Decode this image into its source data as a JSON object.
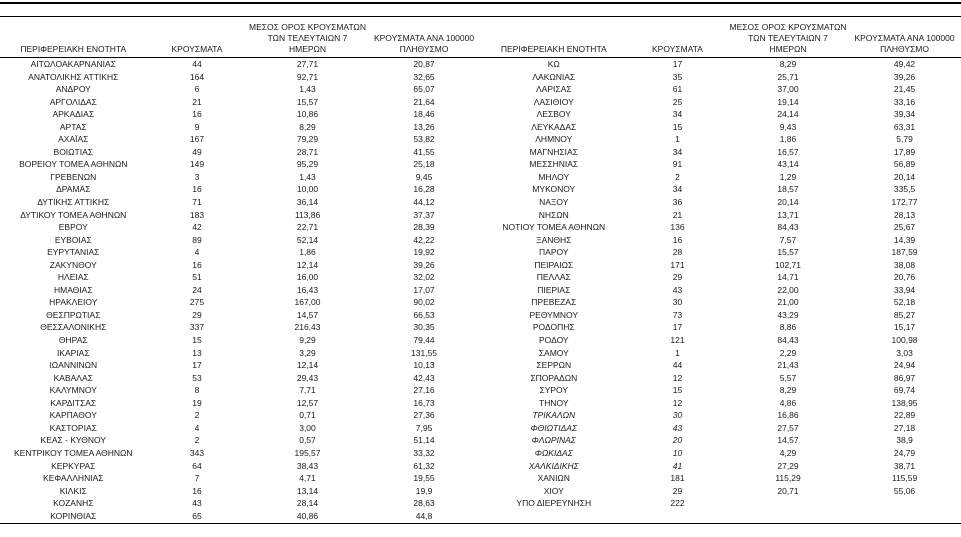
{
  "colors": {
    "background": "#ffffff",
    "text": "#1a1a1a",
    "line": "#000000"
  },
  "headers": {
    "region": "ΠΕΡΙΦΕΡΕΙΑΚΗ ΕΝΟΤΗΤΑ",
    "cases": "ΚΡΟΥΣΜΑΤΑ",
    "avg7_line1": "ΜΕΣΟΣ ΟΡΟΣ ΚΡΟΥΣΜΑΤΩΝ",
    "avg7_line2": "ΤΩΝ ΤΕΛΕΥΤΑΙΩΝ 7",
    "avg7_line3": "ΗΜΕΡΩΝ",
    "per100k_line1": "ΚΡΟΥΣΜΑΤΑ ΑΝΑ 100000",
    "per100k_line2": "ΠΛΗΘΥΣΜΟ"
  },
  "left_rows": [
    {
      "region": "ΑΙΤΩΛΟΑΚΑΡΝΑΝΙΑΣ",
      "cases": "44",
      "avg7": "27,71",
      "per100k": "20,87",
      "italic": false
    },
    {
      "region": "ΑΝΑΤΟΛΙΚΗΣ ΑΤΤΙΚΗΣ",
      "cases": "164",
      "avg7": "92,71",
      "per100k": "32,65",
      "italic": false
    },
    {
      "region": "ΑΝΔΡΟΥ",
      "cases": "6",
      "avg7": "1,43",
      "per100k": "65,07",
      "italic": false
    },
    {
      "region": "ΑΡΓΟΛΙΔΑΣ",
      "cases": "21",
      "avg7": "15,57",
      "per100k": "21,64",
      "italic": false
    },
    {
      "region": "ΑΡΚΑΔΙΑΣ",
      "cases": "16",
      "avg7": "10,86",
      "per100k": "18,46",
      "italic": false
    },
    {
      "region": "ΑΡΤΑΣ",
      "cases": "9",
      "avg7": "8,29",
      "per100k": "13,26",
      "italic": false
    },
    {
      "region": "ΑΧΑΪΑΣ",
      "cases": "167",
      "avg7": "79,29",
      "per100k": "53,82",
      "italic": false
    },
    {
      "region": "ΒΟΙΩΤΙΑΣ",
      "cases": "49",
      "avg7": "28,71",
      "per100k": "41,55",
      "italic": false
    },
    {
      "region": "ΒΟΡΕΙΟΥ ΤΟΜΕΑ ΑΘΗΝΩΝ",
      "cases": "149",
      "avg7": "95,29",
      "per100k": "25,18",
      "italic": false
    },
    {
      "region": "ΓΡΕΒΕΝΩΝ",
      "cases": "3",
      "avg7": "1,43",
      "per100k": "9,45",
      "italic": false
    },
    {
      "region": "ΔΡΑΜΑΣ",
      "cases": "16",
      "avg7": "10,00",
      "per100k": "16,28",
      "italic": false
    },
    {
      "region": "ΔΥΤΙΚΗΣ ΑΤΤΙΚΗΣ",
      "cases": "71",
      "avg7": "36,14",
      "per100k": "44,12",
      "italic": false
    },
    {
      "region": "ΔΥΤΙΚΟΥ ΤΟΜΕΑ ΑΘΗΝΩΝ",
      "cases": "183",
      "avg7": "113,86",
      "per100k": "37,37",
      "italic": false
    },
    {
      "region": "ΕΒΡΟΥ",
      "cases": "42",
      "avg7": "22,71",
      "per100k": "28,39",
      "italic": false
    },
    {
      "region": "ΕΥΒΟΙΑΣ",
      "cases": "89",
      "avg7": "52,14",
      "per100k": "42,22",
      "italic": false
    },
    {
      "region": "ΕΥΡΥΤΑΝΙΑΣ",
      "cases": "4",
      "avg7": "1,86",
      "per100k": "19,92",
      "italic": false
    },
    {
      "region": "ΖΑΚΥΝΘΟΥ",
      "cases": "16",
      "avg7": "12,14",
      "per100k": "39,26",
      "italic": false
    },
    {
      "region": "ΗΛΕΙΑΣ",
      "cases": "51",
      "avg7": "16,00",
      "per100k": "32,02",
      "italic": false
    },
    {
      "region": "ΗΜΑΘΙΑΣ",
      "cases": "24",
      "avg7": "16,43",
      "per100k": "17,07",
      "italic": false
    },
    {
      "region": "ΗΡΑΚΛΕΙΟΥ",
      "cases": "275",
      "avg7": "167,00",
      "per100k": "90,02",
      "italic": false
    },
    {
      "region": "ΘΕΣΠΡΩΤΙΑΣ",
      "cases": "29",
      "avg7": "14,57",
      "per100k": "66,53",
      "italic": false
    },
    {
      "region": "ΘΕΣΣΑΛΟΝΙΚΗΣ",
      "cases": "337",
      "avg7": "216,43",
      "per100k": "30,35",
      "italic": false
    },
    {
      "region": "ΘΗΡΑΣ",
      "cases": "15",
      "avg7": "9,29",
      "per100k": "79,44",
      "italic": false
    },
    {
      "region": "ΙΚΑΡΙΑΣ",
      "cases": "13",
      "avg7": "3,29",
      "per100k": "131,55",
      "italic": false
    },
    {
      "region": "ΙΩΑΝΝΙΝΩΝ",
      "cases": "17",
      "avg7": "12,14",
      "per100k": "10,13",
      "italic": false
    },
    {
      "region": "ΚΑΒΑΛΑΣ",
      "cases": "53",
      "avg7": "29,43",
      "per100k": "42,43",
      "italic": false
    },
    {
      "region": "ΚΑΛΥΜΝΟΥ",
      "cases": "8",
      "avg7": "7,71",
      "per100k": "27,16",
      "italic": false
    },
    {
      "region": "ΚΑΡΔΙΤΣΑΣ",
      "cases": "19",
      "avg7": "12,57",
      "per100k": "16,73",
      "italic": false
    },
    {
      "region": "ΚΑΡΠΑΘΟΥ",
      "cases": "2",
      "avg7": "0,71",
      "per100k": "27,36",
      "italic": false
    },
    {
      "region": "ΚΑΣΤΟΡΙΑΣ",
      "cases": "4",
      "avg7": "3,00",
      "per100k": "7,95",
      "italic": false
    },
    {
      "region": "ΚΕΑΣ - ΚΥΘΝΟΥ",
      "cases": "2",
      "avg7": "0,57",
      "per100k": "51,14",
      "italic": false
    },
    {
      "region": "ΚΕΝΤΡΙΚΟΥ ΤΟΜΕΑ ΑΘΗΝΩΝ",
      "cases": "343",
      "avg7": "195,57",
      "per100k": "33,32",
      "italic": false
    },
    {
      "region": "ΚΕΡΚΥΡΑΣ",
      "cases": "64",
      "avg7": "38,43",
      "per100k": "61,32",
      "italic": false
    },
    {
      "region": "ΚΕΦΑΛΛΗΝΙΑΣ",
      "cases": "7",
      "avg7": "4,71",
      "per100k": "19,55",
      "italic": false
    },
    {
      "region": "ΚΙΛΚΙΣ",
      "cases": "16",
      "avg7": "13,14",
      "per100k": "19,9",
      "italic": false
    },
    {
      "region": "ΚΟΖΑΝΗΣ",
      "cases": "43",
      "avg7": "28,14",
      "per100k": "28,63",
      "italic": false
    },
    {
      "region": "ΚΟΡΙΝΘΙΑΣ",
      "cases": "65",
      "avg7": "40,86",
      "per100k": "44,8",
      "italic": false
    }
  ],
  "right_rows": [
    {
      "region": "ΚΩ",
      "cases": "17",
      "avg7": "8,29",
      "per100k": "49,42",
      "italic": false
    },
    {
      "region": "ΛΑΚΩΝΙΑΣ",
      "cases": "35",
      "avg7": "25,71",
      "per100k": "39,26",
      "italic": false
    },
    {
      "region": "ΛΑΡΙΣΑΣ",
      "cases": "61",
      "avg7": "37,00",
      "per100k": "21,45",
      "italic": false
    },
    {
      "region": "ΛΑΣΙΘΙΟΥ",
      "cases": "25",
      "avg7": "19,14",
      "per100k": "33,16",
      "italic": false
    },
    {
      "region": "ΛΕΣΒΟΥ",
      "cases": "34",
      "avg7": "24,14",
      "per100k": "39,34",
      "italic": false
    },
    {
      "region": "ΛΕΥΚΑΔΑΣ",
      "cases": "15",
      "avg7": "9,43",
      "per100k": "63,31",
      "italic": false
    },
    {
      "region": "ΛΗΜΝΟΥ",
      "cases": "1",
      "avg7": "1,86",
      "per100k": "5,79",
      "italic": false
    },
    {
      "region": "ΜΑΓΝΗΣΙΑΣ",
      "cases": "34",
      "avg7": "16,57",
      "per100k": "17,89",
      "italic": false
    },
    {
      "region": "ΜΕΣΣΗΝΙΑΣ",
      "cases": "91",
      "avg7": "43,14",
      "per100k": "56,89",
      "italic": false
    },
    {
      "region": "ΜΗΛΟΥ",
      "cases": "2",
      "avg7": "1,29",
      "per100k": "20,14",
      "italic": false
    },
    {
      "region": "ΜΥΚΟΝΟΥ",
      "cases": "34",
      "avg7": "18,57",
      "per100k": "335,5",
      "italic": false
    },
    {
      "region": "ΝΑΞΟΥ",
      "cases": "36",
      "avg7": "20,14",
      "per100k": "172,77",
      "italic": false
    },
    {
      "region": "ΝΗΣΩΝ",
      "cases": "21",
      "avg7": "13,71",
      "per100k": "28,13",
      "italic": false
    },
    {
      "region": "ΝΟΤΙΟΥ ΤΟΜΕΑ ΑΘΗΝΩΝ",
      "cases": "136",
      "avg7": "84,43",
      "per100k": "25,67",
      "italic": false
    },
    {
      "region": "ΞΑΝΘΗΣ",
      "cases": "16",
      "avg7": "7,57",
      "per100k": "14,39",
      "italic": false
    },
    {
      "region": "ΠΑΡΟΥ",
      "cases": "28",
      "avg7": "15,57",
      "per100k": "187,59",
      "italic": false
    },
    {
      "region": "ΠΕΙΡΑΙΩΣ",
      "cases": "171",
      "avg7": "102,71",
      "per100k": "38,08",
      "italic": false
    },
    {
      "region": "ΠΕΛΛΑΣ",
      "cases": "29",
      "avg7": "14,71",
      "per100k": "20,76",
      "italic": false
    },
    {
      "region": "ΠΙΕΡΙΑΣ",
      "cases": "43",
      "avg7": "22,00",
      "per100k": "33,94",
      "italic": false
    },
    {
      "region": "ΠΡΕΒΕΖΑΣ",
      "cases": "30",
      "avg7": "21,00",
      "per100k": "52,18",
      "italic": false
    },
    {
      "region": "ΡΕΘΥΜΝΟΥ",
      "cases": "73",
      "avg7": "43,29",
      "per100k": "85,27",
      "italic": false
    },
    {
      "region": "ΡΟΔΟΠΗΣ",
      "cases": "17",
      "avg7": "8,86",
      "per100k": "15,17",
      "italic": false
    },
    {
      "region": "ΡΟΔΟΥ",
      "cases": "121",
      "avg7": "84,43",
      "per100k": "100,98",
      "italic": false
    },
    {
      "region": "ΣΑΜΟΥ",
      "cases": "1",
      "avg7": "2,29",
      "per100k": "3,03",
      "italic": false
    },
    {
      "region": "ΣΕΡΡΩΝ",
      "cases": "44",
      "avg7": "21,43",
      "per100k": "24,94",
      "italic": false
    },
    {
      "region": "ΣΠΟΡΑΔΩΝ",
      "cases": "12",
      "avg7": "5,57",
      "per100k": "86,97",
      "italic": false
    },
    {
      "region": "ΣΥΡΟΥ",
      "cases": "15",
      "avg7": "8,29",
      "per100k": "69,74",
      "italic": false
    },
    {
      "region": "ΤΗΝΟΥ",
      "cases": "12",
      "avg7": "4,86",
      "per100k": "138,95",
      "italic": false
    },
    {
      "region": "ΤΡΙΚΑΛΩΝ",
      "cases": "30",
      "avg7": "16,86",
      "per100k": "22,89",
      "italic": true
    },
    {
      "region": "ΦΘΙΩΤΙΔΑΣ",
      "cases": "43",
      "avg7": "27,57",
      "per100k": "27,18",
      "italic": true
    },
    {
      "region": "ΦΛΩΡΙΝΑΣ",
      "cases": "20",
      "avg7": "14,57",
      "per100k": "38,9",
      "italic": true
    },
    {
      "region": "ΦΩΚΙΔΑΣ",
      "cases": "10",
      "avg7": "4,29",
      "per100k": "24,79",
      "italic": true
    },
    {
      "region": "ΧΑΛΚΙΔΙΚΗΣ",
      "cases": "41",
      "avg7": "27,29",
      "per100k": "38,71",
      "italic": true
    },
    {
      "region": "ΧΑΝΙΩΝ",
      "cases": "181",
      "avg7": "115,29",
      "per100k": "115,59",
      "italic": false
    },
    {
      "region": "ΧΙΟΥ",
      "cases": "29",
      "avg7": "20,71",
      "per100k": "55,06",
      "italic": false
    },
    {
      "region": "ΥΠΟ ΔΙΕΡΕΥΝΗΣΗ",
      "cases": "222",
      "avg7": "",
      "per100k": "",
      "italic": false
    }
  ]
}
